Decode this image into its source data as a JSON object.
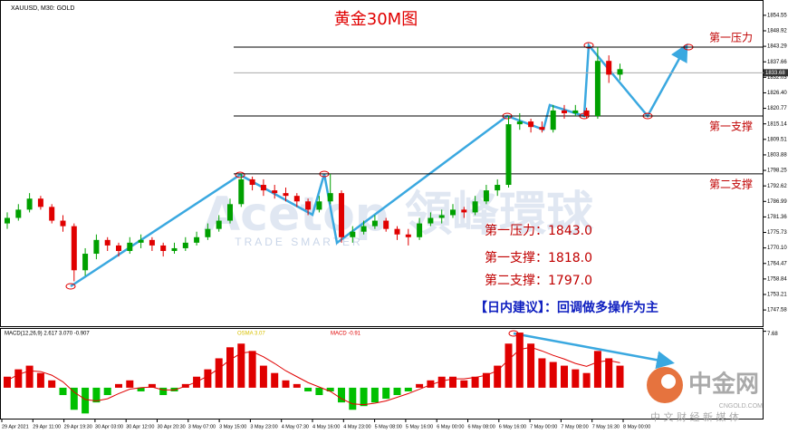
{
  "chart_data": {
    "type": "candlestick",
    "symbol_label": "XAUUSD, M30: GOLD",
    "title": "黄金30M图",
    "x_labels": [
      "29 Apr 2021",
      "29 Apr 11:00",
      "29 Apr 19:30",
      "30 Apr 03:00",
      "30 Apr 12:00",
      "30 Apr 20:30",
      "3 May 07:00",
      "3 May 15:00",
      "3 May 23:00",
      "4 May 07:30",
      "4 May 16:00",
      "4 May 23:00",
      "5 May 08:00",
      "5 May 16:00",
      "6 May 00:00",
      "6 May 08:00",
      "6 May 16:00",
      "7 May 00:00",
      "7 May 08:00",
      "7 May 16:30",
      "8 May 00:00"
    ],
    "open": [
      1779,
      1781,
      1784,
      1788,
      1785,
      1780,
      1778,
      1762,
      1768,
      1773,
      1771,
      1769,
      1772,
      1773,
      1771,
      1769,
      1770,
      1772,
      1774,
      1777,
      1780,
      1786,
      1795,
      1793,
      1791,
      1790,
      1789,
      1787,
      1784,
      1787,
      1790,
      1774,
      1776,
      1778,
      1780,
      1777,
      1775,
      1774,
      1779,
      1781,
      1782,
      1784,
      1783,
      1787,
      1791,
      1793,
      1815,
      1816,
      1814,
      1813,
      1820,
      1819,
      1820,
      1818,
      1838,
      1833
    ],
    "high": [
      1783,
      1786,
      1790,
      1789,
      1786,
      1782,
      1779,
      1770,
      1775,
      1774,
      1772,
      1774,
      1775,
      1774,
      1772,
      1772,
      1774,
      1776,
      1779,
      1782,
      1788,
      1797,
      1796,
      1795,
      1793,
      1792,
      1790,
      1788,
      1789,
      1797,
      1791,
      1778,
      1780,
      1782,
      1781,
      1778,
      1777,
      1781,
      1783,
      1784,
      1786,
      1785,
      1789,
      1793,
      1795,
      1818,
      1819,
      1817,
      1816,
      1822,
      1822,
      1822,
      1821,
      1843,
      1840,
      1837
    ],
    "low": [
      1777,
      1780,
      1783,
      1784,
      1779,
      1776,
      1758,
      1760,
      1766,
      1769,
      1767,
      1768,
      1770,
      1769,
      1767,
      1768,
      1769,
      1771,
      1773,
      1776,
      1779,
      1785,
      1791,
      1789,
      1788,
      1787,
      1785,
      1782,
      1783,
      1786,
      1772,
      1772,
      1775,
      1777,
      1776,
      1773,
      1771,
      1773,
      1778,
      1779,
      1781,
      1781,
      1782,
      1786,
      1789,
      1792,
      1813,
      1812,
      1812,
      1812,
      1817,
      1818,
      1817,
      1817,
      1830,
      1831
    ],
    "close": [
      1781,
      1784,
      1788,
      1785,
      1780,
      1778,
      1762,
      1768,
      1773,
      1771,
      1769,
      1772,
      1773,
      1771,
      1769,
      1770,
      1772,
      1774,
      1777,
      1780,
      1786,
      1795,
      1793,
      1791,
      1790,
      1789,
      1787,
      1784,
      1787,
      1790,
      1774,
      1776,
      1778,
      1780,
      1777,
      1775,
      1774,
      1779,
      1781,
      1782,
      1784,
      1783,
      1787,
      1791,
      1793,
      1815,
      1816,
      1814,
      1813,
      1820,
      1819,
      1820,
      1818,
      1838,
      1833,
      1835
    ],
    "up_color": "#00a000",
    "down_color": "#e00000",
    "ylim": [
      1741.7,
      1860.1
    ],
    "yticks": [
      1854.55,
      1848.92,
      1843.29,
      1837.66,
      1832.03,
      {
        "value": 1826.4,
        "label": "1826.40"
      },
      1820.77,
      1815.14,
      1809.51,
      1803.88,
      1798.25,
      1792.62,
      1786.99,
      1781.36,
      1775.73,
      {
        "value": 1770.1,
        "label": "1770.10"
      },
      1764.47,
      1758.84,
      1753.21,
      1747.58
    ],
    "current_price": 1833.68,
    "levels": [
      {
        "name": "第一压力",
        "value": 1843
      },
      {
        "name": "第一支撑",
        "value": 1818
      },
      {
        "name": "第二支撑",
        "value": 1797
      }
    ],
    "annotations": [
      "第一压力：1843.0",
      "第一支撑：1818.0",
      "第二支撑：1797.0",
      "【日内建议】：回调做多操作为主"
    ],
    "macd": {
      "label": "MACD(12,26,9) 2.617 3.070 -0.907",
      "osma_label": "OSMA 3.07",
      "macd_label": "MACD -0.91",
      "histogram": [
        1.5,
        2.5,
        3,
        2,
        1,
        -1,
        -3,
        -3.5,
        -2,
        -1,
        0.5,
        1,
        -0.5,
        0.5,
        -1,
        -0.5,
        0.5,
        1.5,
        2.5,
        4,
        5.5,
        6,
        5,
        3,
        2,
        1,
        0.5,
        -0.5,
        -1,
        -0.5,
        -2,
        -3,
        -2.5,
        -2,
        -1.5,
        -1,
        -0.5,
        0.5,
        1,
        1.5,
        1.5,
        1,
        1.5,
        2,
        3,
        6,
        7.5,
        6,
        4,
        3.5,
        3,
        2.5,
        2,
        5,
        4,
        3
      ],
      "signal": [
        1,
        1.8,
        2.3,
        2.2,
        1.7,
        0.8,
        -0.6,
        -1.6,
        -1.8,
        -1.5,
        -0.8,
        -0.2,
        0,
        0.1,
        -0.3,
        -0.3,
        0.2,
        0.8,
        1.6,
        2.6,
        3.8,
        4.7,
        4.9,
        4.2,
        3.3,
        2.3,
        1.5,
        0.7,
        0.1,
        -0.5,
        -1.5,
        -2.2,
        -2.3,
        -2.1,
        -1.8,
        -1.3,
        -0.8,
        -0.2,
        0.4,
        0.9,
        1.2,
        1.2,
        1.4,
        1.7,
        2.3,
        3.8,
        5.2,
        5.5,
        5,
        4.4,
        3.9,
        3.3,
        2.9,
        3.5,
        3.7,
        3.4
      ],
      "hist_up": "#e00000",
      "hist_down": "#00c000",
      "signal_color": "#e00000",
      "ylim": [
        -4.2,
        8
      ],
      "yticks": [
        7.68
      ]
    },
    "watermarks": {
      "brand": "Acetop 領峰環球",
      "slogan": "TRADE SMARTER",
      "logo": "中金网",
      "site": "CNGOLD.COM",
      "tagline": "中 文 财 经 新 媒 体"
    }
  }
}
